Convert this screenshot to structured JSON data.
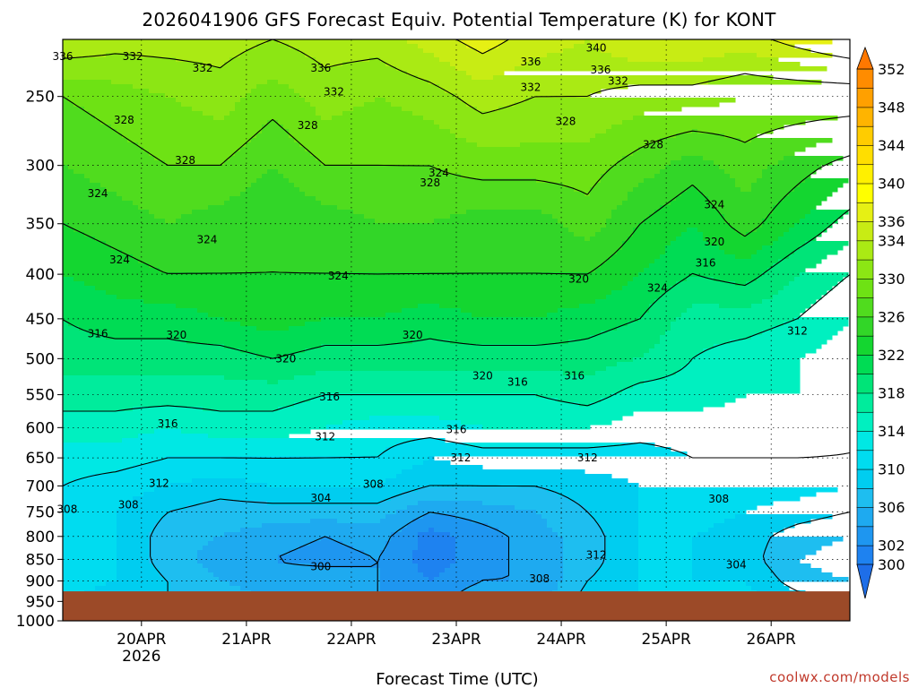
{
  "chart_data": {
    "type": "heatmap",
    "title": "2026041906 GFS Forecast Equiv. Potential Temperature (K) for KONT",
    "xlabel": "Forecast Time (UTC)",
    "ylabel": "",
    "credit": "coolwx.com/models",
    "y_scale": "log",
    "y_inverted": true,
    "ylim": [
      1000,
      215
    ],
    "xlim": [
      "2026-04-19 06",
      "2026-04-26 18"
    ],
    "yticks": [
      {
        "value": 250,
        "label": "250"
      },
      {
        "value": 300,
        "label": "300"
      },
      {
        "value": 350,
        "label": "350"
      },
      {
        "value": 400,
        "label": "400"
      },
      {
        "value": 450,
        "label": "450"
      },
      {
        "value": 500,
        "label": "500"
      },
      {
        "value": 550,
        "label": "550"
      },
      {
        "value": 600,
        "label": "600"
      },
      {
        "value": 650,
        "label": "650"
      },
      {
        "value": 700,
        "label": "700"
      },
      {
        "value": 750,
        "label": "750"
      },
      {
        "value": 800,
        "label": "800"
      },
      {
        "value": 850,
        "label": "850"
      },
      {
        "value": 900,
        "label": "900"
      },
      {
        "value": 950,
        "label": "950"
      },
      {
        "value": 1000,
        "label": "1000"
      }
    ],
    "xticks": [
      {
        "value": "2026-04-20 00",
        "label": "20APR",
        "sublabel": "2026"
      },
      {
        "value": "2026-04-21 00",
        "label": "21APR",
        "sublabel": ""
      },
      {
        "value": "2026-04-22 00",
        "label": "22APR",
        "sublabel": ""
      },
      {
        "value": "2026-04-23 00",
        "label": "23APR",
        "sublabel": ""
      },
      {
        "value": "2026-04-24 00",
        "label": "24APR",
        "sublabel": ""
      },
      {
        "value": "2026-04-25 00",
        "label": "25APR",
        "sublabel": ""
      },
      {
        "value": "2026-04-26 00",
        "label": "26APR",
        "sublabel": ""
      }
    ],
    "surface_pressure": 925,
    "surface_color": "#9c4a28",
    "colorbar": {
      "boundaries": [
        298,
        300,
        302,
        304,
        306,
        308,
        310,
        312,
        314,
        316,
        318,
        320,
        322,
        324,
        326,
        328,
        330,
        332,
        334,
        336,
        338,
        340,
        342,
        344,
        346,
        348,
        350,
        352,
        354
      ],
      "colors": [
        "#1e6ee8",
        "#1e82f0",
        "#1e96f0",
        "#1eaaf0",
        "#1ebef0",
        "#00cdf0",
        "#00dcf0",
        "#00e8e4",
        "#00f0c0",
        "#00ec9c",
        "#00e478",
        "#00dc54",
        "#14d630",
        "#32d628",
        "#50dc1e",
        "#6ee214",
        "#8ce614",
        "#aaea14",
        "#c8ec14",
        "#e6f014",
        "#ffff00",
        "#fff000",
        "#ffde00",
        "#ffcc00",
        "#ffb400",
        "#ffa000",
        "#ff8c00",
        "#ff7800"
      ],
      "labels": [
        300,
        302,
        306,
        310,
        314,
        318,
        322,
        326,
        330,
        334,
        336,
        340,
        344,
        348,
        352
      ]
    },
    "levels": [
      1000,
      950,
      900,
      850,
      800,
      750,
      700,
      650,
      600,
      550,
      500,
      450,
      400,
      350,
      300,
      250,
      215
    ],
    "times": [
      "2026-04-19 06",
      "2026-04-19 18",
      "2026-04-20 06",
      "2026-04-20 18",
      "2026-04-21 06",
      "2026-04-21 18",
      "2026-04-22 06",
      "2026-04-22 18",
      "2026-04-23 06",
      "2026-04-23 18",
      "2026-04-24 06",
      "2026-04-24 18",
      "2026-04-25 06",
      "2026-04-25 18",
      "2026-04-26 06",
      "2026-04-26 18"
    ],
    "values": [
      [
        310,
        309,
        308,
        307,
        306,
        305,
        304,
        303,
        306,
        305,
        309,
        310,
        310,
        311,
        309,
        308
      ],
      [
        310,
        309,
        308,
        307,
        306,
        305,
        304,
        303,
        306,
        305,
        309,
        310,
        310,
        311,
        309,
        308
      ],
      [
        311,
        310,
        308,
        306,
        305,
        306,
        304,
        302,
        304,
        304,
        308,
        310,
        310,
        310,
        307,
        306
      ],
      [
        311,
        310,
        307,
        305,
        304,
        303,
        304,
        301,
        303,
        305,
        307,
        310,
        310,
        309,
        306,
        305
      ],
      [
        311,
        310,
        307,
        306,
        305,
        304,
        305,
        301,
        303,
        305,
        307,
        310,
        310,
        309,
        307,
        306
      ],
      [
        311,
        310,
        308,
        307,
        307,
        307,
        307,
        304,
        305,
        306,
        308,
        310,
        311,
        310,
        309,
        308
      ],
      [
        312,
        311,
        310,
        309,
        310,
        310,
        310,
        308,
        308,
        308,
        309,
        310,
        311,
        311,
        311,
        310
      ],
      [
        313,
        313,
        312,
        312,
        312,
        312,
        312,
        310,
        311,
        311,
        311,
        311,
        312,
        312,
        312,
        312
      ],
      [
        315,
        315,
        314,
        315,
        315,
        314,
        313,
        313,
        314,
        314,
        314,
        313,
        313,
        313,
        313,
        312
      ],
      [
        317,
        317,
        317,
        317,
        317,
        316,
        316,
        316,
        316,
        316,
        317,
        315,
        315,
        314,
        314,
        313
      ],
      [
        319,
        319,
        319,
        319,
        320,
        319,
        319,
        319,
        319,
        319,
        319,
        318,
        316,
        315,
        314,
        313
      ],
      [
        320,
        321,
        321,
        322,
        323,
        322,
        322,
        321,
        322,
        322,
        321,
        320,
        317,
        317,
        316,
        314
      ],
      [
        322,
        323,
        324,
        324,
        324,
        324,
        324,
        324,
        324,
        324,
        324,
        322,
        320,
        321,
        318,
        316
      ],
      [
        324,
        325,
        326,
        325,
        324,
        325,
        326,
        326,
        325,
        325,
        327,
        324,
        322,
        325,
        322,
        319
      ],
      [
        326,
        327,
        328,
        328,
        326,
        328,
        328,
        328,
        329,
        329,
        329,
        327,
        325,
        327,
        325,
        323
      ],
      [
        328,
        329,
        330,
        331,
        329,
        331,
        330,
        331,
        333,
        332,
        332,
        331,
        331,
        330,
        330,
        330
      ],
      [
        334,
        333,
        333,
        333,
        332,
        333,
        333,
        335,
        337,
        335,
        334,
        336,
        336,
        335,
        337,
        339
      ]
    ],
    "contour_labels": [
      {
        "value": "336",
        "time": "2026-04-19 06",
        "p": 225
      },
      {
        "value": "332",
        "time": "2026-04-19 22",
        "p": 225
      },
      {
        "value": "332",
        "time": "2026-04-20 14",
        "p": 232
      },
      {
        "value": "336",
        "time": "2026-04-21 17",
        "p": 232
      },
      {
        "value": "332",
        "time": "2026-04-21 20",
        "p": 247
      },
      {
        "value": "328",
        "time": "2026-04-19 20",
        "p": 266
      },
      {
        "value": "328",
        "time": "2026-04-21 14",
        "p": 270
      },
      {
        "value": "328",
        "time": "2026-04-20 10",
        "p": 296
      },
      {
        "value": "328",
        "time": "2026-04-22 18",
        "p": 314
      },
      {
        "value": "324",
        "time": "2026-04-19 14",
        "p": 323
      },
      {
        "value": "324",
        "time": "2026-04-22 20",
        "p": 306
      },
      {
        "value": "336",
        "time": "2026-04-23 17",
        "p": 228
      },
      {
        "value": "340",
        "time": "2026-04-24 08",
        "p": 220
      },
      {
        "value": "336",
        "time": "2026-04-24 09",
        "p": 233
      },
      {
        "value": "332",
        "time": "2026-04-23 17",
        "p": 244
      },
      {
        "value": "332",
        "time": "2026-04-24 13",
        "p": 240
      },
      {
        "value": "328",
        "time": "2026-04-24 01",
        "p": 267
      },
      {
        "value": "328",
        "time": "2026-04-24 21",
        "p": 284
      },
      {
        "value": "324",
        "time": "2026-04-25 11",
        "p": 333
      },
      {
        "value": "320",
        "time": "2026-04-25 11",
        "p": 367
      },
      {
        "value": "316",
        "time": "2026-04-25 09",
        "p": 388
      },
      {
        "value": "324",
        "time": "2026-04-20 15",
        "p": 365
      },
      {
        "value": "324",
        "time": "2026-04-19 19",
        "p": 385
      },
      {
        "value": "324",
        "time": "2026-04-21 21",
        "p": 402
      },
      {
        "value": "324",
        "time": "2026-04-24 22",
        "p": 415
      },
      {
        "value": "320",
        "time": "2026-04-24 04",
        "p": 405
      },
      {
        "value": "316",
        "time": "2026-04-19 14",
        "p": 468
      },
      {
        "value": "320",
        "time": "2026-04-20 08",
        "p": 470
      },
      {
        "value": "320",
        "time": "2026-04-21 09",
        "p": 500
      },
      {
        "value": "320",
        "time": "2026-04-22 14",
        "p": 470
      },
      {
        "value": "312",
        "time": "2026-04-26 06",
        "p": 465
      },
      {
        "value": "320",
        "time": "2026-04-23 06",
        "p": 523
      },
      {
        "value": "316",
        "time": "2026-04-23 14",
        "p": 532
      },
      {
        "value": "316",
        "time": "2026-04-24 03",
        "p": 523
      },
      {
        "value": "316",
        "time": "2026-04-21 19",
        "p": 553
      },
      {
        "value": "316",
        "time": "2026-04-20 06",
        "p": 594
      },
      {
        "value": "316",
        "time": "2026-04-23 00",
        "p": 603
      },
      {
        "value": "312",
        "time": "2026-04-21 18",
        "p": 615
      },
      {
        "value": "312",
        "time": "2026-04-23 01",
        "p": 650
      },
      {
        "value": "312",
        "time": "2026-04-24 06",
        "p": 650
      },
      {
        "value": "312",
        "time": "2026-04-20 04",
        "p": 695
      },
      {
        "value": "308",
        "time": "2026-04-22 05",
        "p": 697
      },
      {
        "value": "304",
        "time": "2026-04-21 17",
        "p": 723
      },
      {
        "value": "308",
        "time": "2026-04-19 21",
        "p": 736
      },
      {
        "value": "308",
        "time": "2026-04-19 07",
        "p": 745
      },
      {
        "value": "308",
        "time": "2026-04-25 12",
        "p": 725
      },
      {
        "value": "312",
        "time": "2026-04-24 08",
        "p": 840
      },
      {
        "value": "300",
        "time": "2026-04-21 17",
        "p": 867
      },
      {
        "value": "304",
        "time": "2026-04-25 16",
        "p": 862
      },
      {
        "value": "308",
        "time": "2026-04-23 19",
        "p": 895
      }
    ]
  }
}
